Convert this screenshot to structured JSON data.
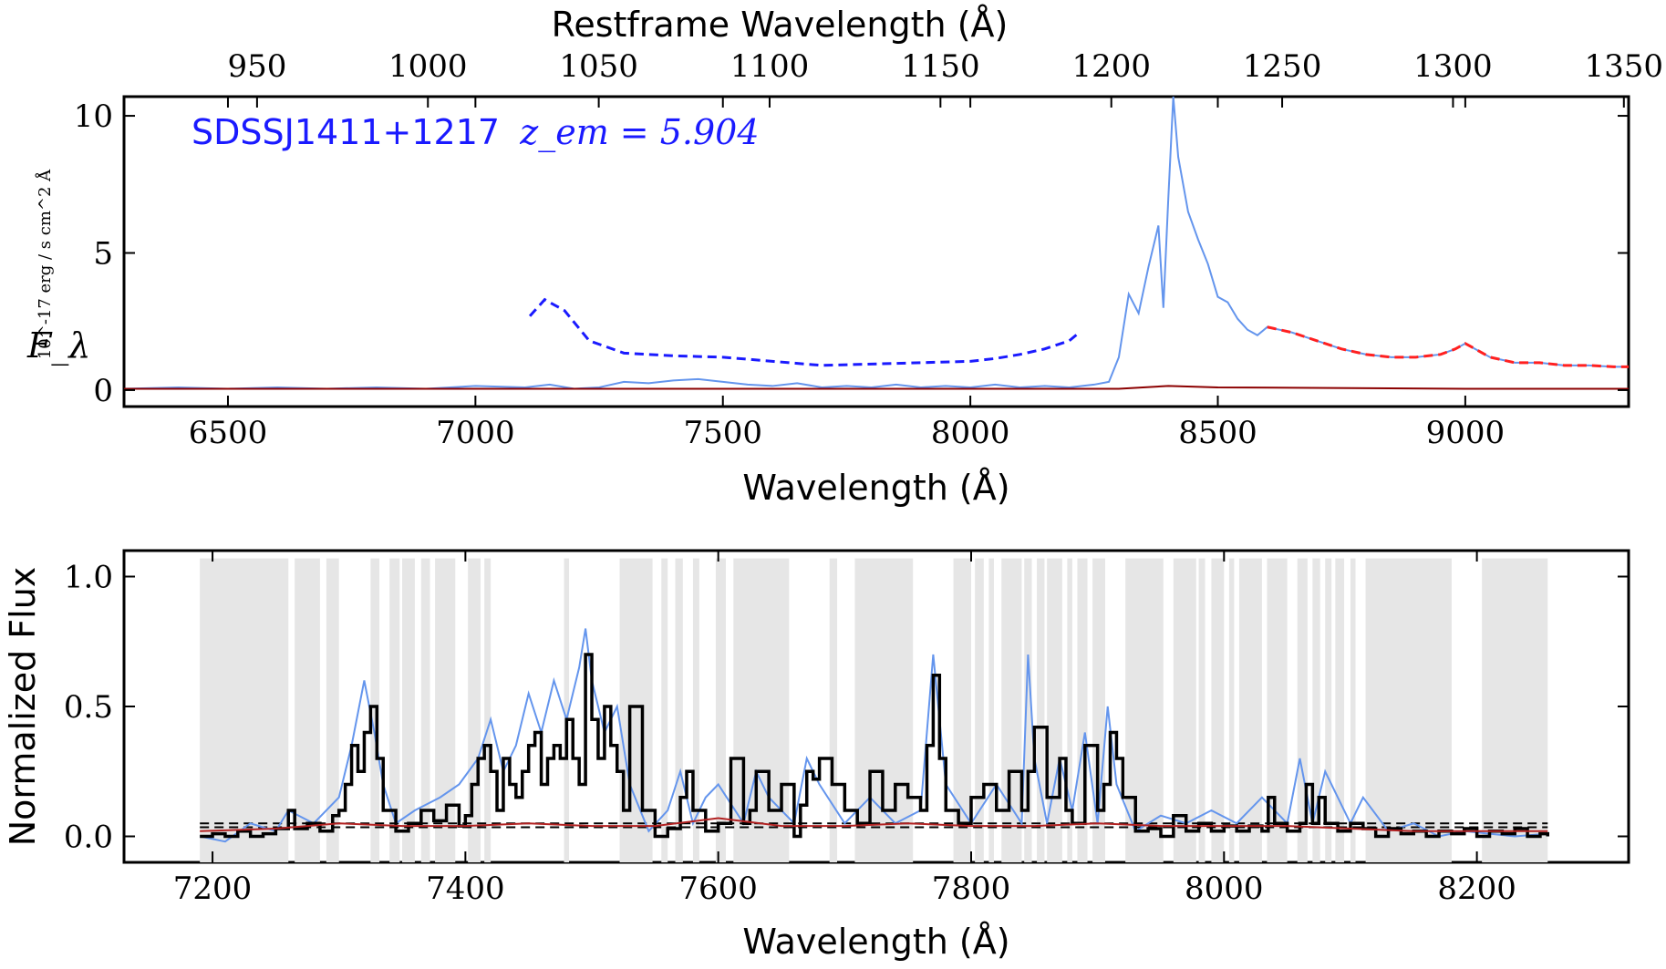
{
  "chart_data": [
    {
      "type": "line",
      "panel": "top",
      "xlabel": "Wavelength (Å)",
      "ylabel": "F_λ",
      "ylabel_unit": "10^-17 erg / s cm^2 Å",
      "secondary_xlabel": "Restframe Wavelength (Å)",
      "annotation": "SDSSJ1411+1217",
      "annotation_math": "z_em = 5.904",
      "xlim": [
        6290,
        9330
      ],
      "ylim": [
        -0.6,
        10.7
      ],
      "xticks": [
        6500,
        7000,
        7500,
        8000,
        8500,
        9000
      ],
      "yticks": [
        0,
        5,
        10
      ],
      "secondary_xticks": [
        950,
        1000,
        1050,
        1100,
        1150,
        1200,
        1250,
        1300,
        1350
      ],
      "z_em": 5.904,
      "series": [
        {
          "color": "#6495ED",
          "x": [
            6290,
            6400,
            6500,
            6600,
            6700,
            6800,
            6900,
            7000,
            7100,
            7150,
            7200,
            7250,
            7300,
            7350,
            7400,
            7450,
            7500,
            7550,
            7600,
            7650,
            7700,
            7750,
            7800,
            7850,
            7900,
            7950,
            8000,
            8050,
            8100,
            8150,
            8200,
            8250,
            8280,
            8300,
            8320,
            8340,
            8360,
            8380,
            8390,
            8400,
            8410,
            8420,
            8440,
            8460,
            8480,
            8500,
            8520,
            8540,
            8560,
            8580,
            8600,
            8650,
            8700,
            8750,
            8800,
            8850,
            8900,
            8950,
            8980,
            9000,
            9020,
            9050,
            9100,
            9150,
            9200,
            9250,
            9300,
            9330
          ],
          "y": [
            0.05,
            0.1,
            0.05,
            0.1,
            0.05,
            0.1,
            0.05,
            0.15,
            0.1,
            0.2,
            0.05,
            0.1,
            0.3,
            0.25,
            0.35,
            0.4,
            0.3,
            0.2,
            0.15,
            0.25,
            0.1,
            0.15,
            0.1,
            0.2,
            0.1,
            0.15,
            0.1,
            0.2,
            0.1,
            0.15,
            0.1,
            0.2,
            0.3,
            1.2,
            3.5,
            2.8,
            4.5,
            6.0,
            3.0,
            7.0,
            10.7,
            8.5,
            6.5,
            5.5,
            4.6,
            3.4,
            3.2,
            2.6,
            2.2,
            2.0,
            2.3,
            2.1,
            1.8,
            1.5,
            1.3,
            1.2,
            1.2,
            1.3,
            1.5,
            1.7,
            1.5,
            1.2,
            1.0,
            1.0,
            0.9,
            0.9,
            0.85,
            0.85
          ]
        },
        {
          "color": "#8b0000",
          "x": [
            6290,
            7000,
            8000,
            8300,
            8400,
            8500,
            9000,
            9330
          ],
          "y": [
            0.05,
            0.05,
            0.05,
            0.05,
            0.15,
            0.1,
            0.05,
            0.05
          ]
        },
        {
          "color": "#ff2020",
          "style": "dashed",
          "x": [
            8600,
            8650,
            8700,
            8750,
            8800,
            8850,
            8900,
            8950,
            8980,
            9000,
            9020,
            9050,
            9100,
            9150,
            9200,
            9250,
            9300,
            9330
          ],
          "y": [
            2.3,
            2.1,
            1.8,
            1.5,
            1.3,
            1.2,
            1.2,
            1.3,
            1.5,
            1.7,
            1.5,
            1.2,
            1.0,
            1.0,
            0.9,
            0.9,
            0.85,
            0.85
          ]
        },
        {
          "color": "#1a1aff",
          "style": "dashed",
          "x": [
            7110,
            7140,
            7180,
            7230,
            7300,
            7400,
            7500,
            7600,
            7700,
            7800,
            7900,
            8000,
            8050,
            8100,
            8150,
            8200,
            8220
          ],
          "y": [
            2.7,
            3.3,
            2.9,
            1.8,
            1.35,
            1.25,
            1.2,
            1.05,
            0.9,
            0.95,
            1.0,
            1.05,
            1.15,
            1.3,
            1.5,
            1.8,
            2.1
          ]
        }
      ]
    },
    {
      "type": "line",
      "panel": "bottom",
      "xlabel": "Wavelength (Å)",
      "ylabel": "Normalized Flux",
      "xlim": [
        7130,
        8320
      ],
      "ylim": [
        -0.1,
        1.1
      ],
      "xticks": [
        7200,
        7400,
        7600,
        7800,
        8000,
        8200
      ],
      "yticks": [
        0.0,
        0.5,
        1.0
      ],
      "shaded_regions": [
        [
          7190,
          7260
        ],
        [
          7265,
          7285
        ],
        [
          7290,
          7300
        ],
        [
          7325,
          7332
        ],
        [
          7340,
          7348
        ],
        [
          7350,
          7360
        ],
        [
          7365,
          7372
        ],
        [
          7376,
          7392
        ],
        [
          7402,
          7412
        ],
        [
          7415,
          7420
        ],
        [
          7478,
          7482
        ],
        [
          7522,
          7548
        ],
        [
          7555,
          7560
        ],
        [
          7566,
          7572
        ],
        [
          7580,
          7585
        ],
        [
          7598,
          7606
        ],
        [
          7612,
          7656
        ],
        [
          7688,
          7694
        ],
        [
          7708,
          7754
        ],
        [
          7786,
          7800
        ],
        [
          7803,
          7810
        ],
        [
          7814,
          7818
        ],
        [
          7824,
          7840
        ],
        [
          7842,
          7848
        ],
        [
          7852,
          7858
        ],
        [
          7860,
          7872
        ],
        [
          7876,
          7880
        ],
        [
          7884,
          7892
        ],
        [
          7896,
          7906
        ],
        [
          7922,
          7952
        ],
        [
          7960,
          7978
        ],
        [
          7980,
          7985
        ],
        [
          7990,
          8000
        ],
        [
          8004,
          8008
        ],
        [
          8012,
          8030
        ],
        [
          8034,
          8050
        ],
        [
          8058,
          8066
        ],
        [
          8070,
          8076
        ],
        [
          8080,
          8085
        ],
        [
          8088,
          8095
        ],
        [
          8100,
          8104
        ],
        [
          8112,
          8180
        ],
        [
          8204,
          8256
        ]
      ],
      "thresholds": [
        0.05,
        0.035
      ],
      "series": [
        {
          "color": "#6495ED",
          "x": [
            7190,
            7210,
            7230,
            7250,
            7260,
            7280,
            7300,
            7310,
            7320,
            7328,
            7335,
            7345,
            7360,
            7380,
            7395,
            7410,
            7420,
            7430,
            7440,
            7450,
            7460,
            7470,
            7480,
            7490,
            7495,
            7500,
            7510,
            7520,
            7530,
            7545,
            7560,
            7570,
            7580,
            7590,
            7600,
            7620,
            7630,
            7640,
            7660,
            7670,
            7680,
            7700,
            7720,
            7740,
            7760,
            7770,
            7780,
            7800,
            7820,
            7840,
            7845,
            7850,
            7860,
            7870,
            7880,
            7890,
            7900,
            7908,
            7915,
            7930,
            7950,
            7970,
            7990,
            8010,
            8030,
            8050,
            8060,
            8070,
            8080,
            8100,
            8110,
            8130,
            8150,
            8170,
            8190,
            8210,
            8230,
            8256
          ],
          "y": [
            0.0,
            -0.02,
            0.05,
            0.02,
            0.1,
            0.05,
            0.15,
            0.35,
            0.6,
            0.4,
            0.2,
            0.05,
            0.1,
            0.15,
            0.2,
            0.3,
            0.45,
            0.25,
            0.35,
            0.55,
            0.4,
            0.6,
            0.45,
            0.65,
            0.8,
            0.6,
            0.4,
            0.5,
            0.2,
            0.02,
            0.1,
            0.25,
            0.05,
            0.15,
            0.2,
            0.05,
            0.25,
            0.15,
            0.05,
            0.3,
            0.2,
            0.05,
            0.15,
            0.05,
            0.1,
            0.7,
            0.2,
            0.05,
            0.2,
            0.05,
            0.7,
            0.3,
            0.05,
            0.3,
            0.1,
            0.4,
            0.05,
            0.5,
            0.2,
            0.02,
            0.08,
            0.05,
            0.1,
            0.05,
            0.15,
            0.05,
            0.3,
            0.05,
            0.25,
            0.05,
            0.15,
            0.02,
            0.05,
            0.0,
            0.02,
            0.01,
            0.0,
            0.01
          ]
        },
        {
          "color": "#000000",
          "style": "steps",
          "x": [
            7190,
            7200,
            7210,
            7220,
            7230,
            7240,
            7250,
            7260,
            7265,
            7275,
            7285,
            7295,
            7300,
            7305,
            7310,
            7315,
            7320,
            7325,
            7330,
            7335,
            7345,
            7355,
            7365,
            7375,
            7385,
            7395,
            7400,
            7405,
            7410,
            7415,
            7420,
            7425,
            7430,
            7435,
            7440,
            7445,
            7450,
            7455,
            7460,
            7465,
            7470,
            7475,
            7480,
            7485,
            7490,
            7495,
            7500,
            7505,
            7510,
            7515,
            7520,
            7525,
            7530,
            7540,
            7550,
            7560,
            7570,
            7575,
            7580,
            7590,
            7600,
            7610,
            7620,
            7625,
            7630,
            7640,
            7650,
            7660,
            7665,
            7670,
            7675,
            7680,
            7690,
            7700,
            7710,
            7720,
            7730,
            7740,
            7750,
            7760,
            7765,
            7770,
            7775,
            7780,
            7790,
            7800,
            7810,
            7820,
            7830,
            7840,
            7845,
            7850,
            7860,
            7870,
            7875,
            7880,
            7890,
            7900,
            7905,
            7910,
            7915,
            7920,
            7930,
            7940,
            7950,
            7960,
            7970,
            7980,
            7990,
            8000,
            8010,
            8020,
            8030,
            8035,
            8040,
            8050,
            8060,
            8065,
            8070,
            8075,
            8080,
            8090,
            8100,
            8110,
            8120,
            8130,
            8140,
            8150,
            8160,
            8170,
            8180,
            8190,
            8200,
            8210,
            8220,
            8230,
            8240,
            8250,
            8256
          ],
          "y": [
            0.0,
            0.01,
            0.0,
            0.02,
            0.0,
            0.01,
            0.03,
            0.1,
            0.03,
            0.05,
            0.02,
            0.08,
            0.1,
            0.2,
            0.35,
            0.25,
            0.4,
            0.5,
            0.3,
            0.1,
            0.02,
            0.05,
            0.1,
            0.06,
            0.12,
            0.04,
            0.08,
            0.2,
            0.3,
            0.35,
            0.25,
            0.1,
            0.3,
            0.2,
            0.15,
            0.25,
            0.35,
            0.4,
            0.2,
            0.3,
            0.35,
            0.3,
            0.45,
            0.3,
            0.2,
            0.7,
            0.45,
            0.3,
            0.5,
            0.35,
            0.25,
            0.1,
            0.5,
            0.1,
            0.0,
            0.03,
            0.15,
            0.25,
            0.1,
            0.02,
            0.05,
            0.3,
            0.05,
            0.1,
            0.25,
            0.1,
            0.2,
            0.0,
            0.12,
            0.25,
            0.22,
            0.3,
            0.2,
            0.1,
            0.05,
            0.25,
            0.1,
            0.2,
            0.15,
            0.1,
            0.35,
            0.62,
            0.3,
            0.1,
            0.05,
            0.15,
            0.2,
            0.1,
            0.25,
            0.1,
            0.25,
            0.42,
            0.15,
            0.3,
            0.1,
            0.05,
            0.35,
            0.1,
            0.2,
            0.4,
            0.3,
            0.15,
            0.02,
            0.03,
            0.0,
            0.08,
            0.02,
            0.05,
            0.02,
            0.04,
            0.02,
            0.04,
            0.02,
            0.15,
            0.05,
            0.02,
            0.05,
            0.2,
            0.05,
            0.15,
            0.05,
            0.02,
            0.05,
            0.03,
            0.0,
            0.03,
            0.01,
            0.02,
            0.0,
            0.02,
            0.01,
            0.03,
            0.0,
            0.02,
            0.01,
            0.03,
            0.0,
            0.01,
            0.0
          ]
        },
        {
          "color": "#b22222",
          "x": [
            7190,
            7250,
            7300,
            7350,
            7400,
            7450,
            7500,
            7550,
            7600,
            7650,
            7700,
            7750,
            7800,
            7850,
            7900,
            7950,
            8000,
            8050,
            8100,
            8150,
            8200,
            8256
          ],
          "y": [
            0.02,
            0.03,
            0.05,
            0.04,
            0.04,
            0.05,
            0.04,
            0.04,
            0.07,
            0.04,
            0.04,
            0.05,
            0.04,
            0.04,
            0.05,
            0.04,
            0.04,
            0.04,
            0.03,
            0.02,
            0.02,
            0.02
          ]
        }
      ]
    }
  ]
}
